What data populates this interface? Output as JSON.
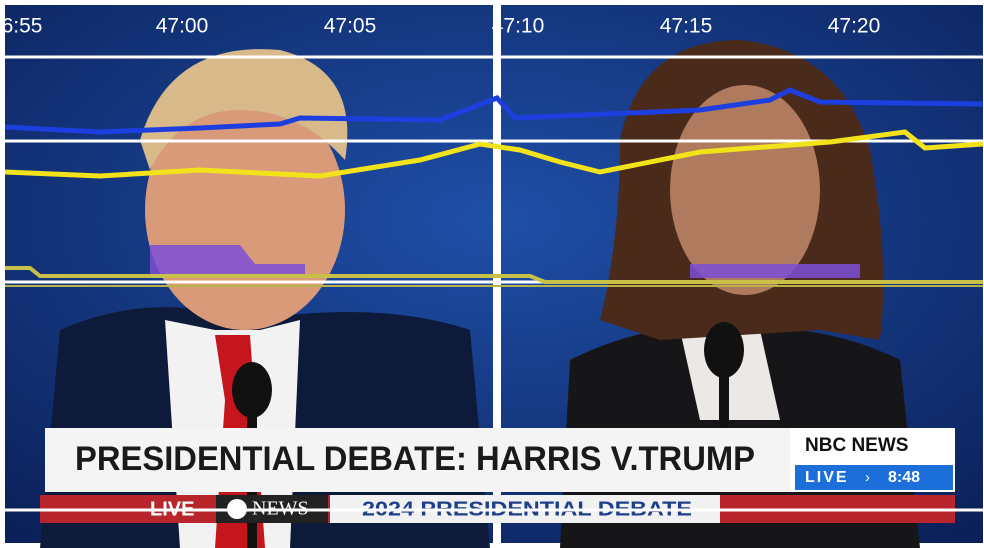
{
  "time_axis": {
    "labels": [
      "6:55",
      "47:00",
      "47:05",
      "47:10",
      "47:15",
      "47:20"
    ]
  },
  "banner": {
    "headline": "PRESIDENTIAL DEBATE: HARRIS V.TRUMP",
    "network": "NBC NEWS",
    "live": "LIVE",
    "time": "8:48"
  },
  "ticker": {
    "live": "LIVE",
    "network": "NEWS",
    "title": "2024 PRESIDENTIAL DEBATE"
  }
}
